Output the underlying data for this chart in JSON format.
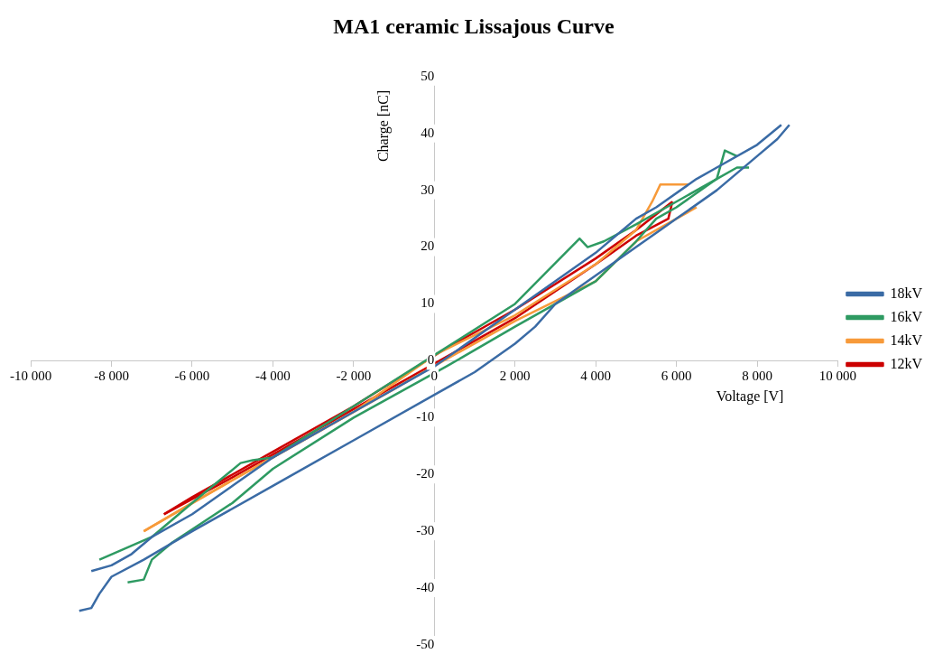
{
  "chart_data": {
    "type": "line",
    "title": "MA1 ceramic Lissajous Curve",
    "xlabel": "Voltage [V]",
    "ylabel": "Charge [nC]",
    "xlim": [
      -10000,
      10000
    ],
    "ylim": [
      -50,
      50
    ],
    "xticks": [
      {
        "value": -10000,
        "label": "-10 000"
      },
      {
        "value": -8000,
        "label": "-8 000"
      },
      {
        "value": -6000,
        "label": "-6 000"
      },
      {
        "value": -4000,
        "label": "-4 000"
      },
      {
        "value": -2000,
        "label": "-2 000"
      },
      0,
      {
        "value": 2000,
        "label": "2 000"
      },
      {
        "value": 4000,
        "label": "4 000"
      },
      {
        "value": 6000,
        "label": "6 000"
      },
      {
        "value": 8000,
        "label": "8 000"
      },
      {
        "value": 10000,
        "label": "10 000"
      }
    ],
    "yticks": [
      -50,
      -40,
      -30,
      -20,
      -10,
      0,
      10,
      20,
      30,
      40,
      50
    ],
    "grid": false,
    "legend": "right",
    "marker": "none",
    "line_style": "solid",
    "series": [
      {
        "name": "18kV",
        "color": "#3a6ba5",
        "x": [
          -8800,
          -8500,
          -8300,
          -8000,
          -7200,
          -6000,
          -4000,
          -2000,
          0,
          1000,
          2000,
          2500,
          3000,
          4000,
          5000,
          6000,
          7000,
          8000,
          8500,
          8800
        ],
        "values": [
          -44,
          -43.5,
          -41,
          -38,
          -35,
          -30,
          -22,
          -14,
          -6,
          -2,
          3,
          6,
          10,
          15,
          20,
          25,
          30,
          36,
          39,
          41.5
        ]
      },
      {
        "color": "#3a6ba5",
        "x": [
          -8500,
          -8000,
          -7500,
          -7000,
          -6000,
          -5000,
          -4000,
          -3000,
          -2000,
          0,
          2000,
          3000,
          4000,
          5000,
          5500,
          6500,
          7000,
          8000,
          8600
        ],
        "values": [
          -37,
          -36,
          -34,
          -31,
          -27,
          -22,
          -17,
          -13,
          -9,
          -1,
          9,
          14,
          19,
          25,
          27,
          32,
          34,
          38,
          41.5
        ]
      },
      {
        "name": "16kV",
        "color": "#2e9a62",
        "x": [
          -8300,
          -7000,
          -6000,
          -4800,
          -4500,
          -4000,
          -2000,
          0,
          2000,
          3600,
          3800,
          4200,
          5000,
          6000,
          7000,
          7200,
          7500
        ],
        "values": [
          -35,
          -31,
          -25,
          -18,
          -17.5,
          -17,
          -8,
          1,
          10,
          21.5,
          20,
          21,
          24,
          28,
          32,
          37,
          36
        ]
      },
      {
        "color": "#2e9a62",
        "x": [
          -7600,
          -7200,
          -7000,
          -6500,
          -5000,
          -4000,
          -2000,
          300,
          2000,
          4000,
          5000,
          5500,
          6000,
          7000,
          7500,
          7800
        ],
        "values": [
          -39,
          -38.5,
          -35,
          -32,
          -25,
          -19,
          -10,
          -1,
          6,
          14,
          21,
          25,
          27,
          32,
          34,
          34
        ]
      },
      {
        "name": "14kV",
        "color": "#f79a3a",
        "x": [
          -7200,
          -6000,
          -4000,
          -2000,
          0,
          2000,
          4000,
          5000,
          5400,
          5600,
          6300
        ],
        "values": [
          -30,
          -25,
          -17,
          -9,
          1,
          8,
          17,
          23,
          28,
          31,
          31
        ]
      },
      {
        "color": "#f79a3a",
        "x": [
          -7200,
          -5000,
          -3000,
          -1000,
          -400,
          2000,
          4000,
          5000,
          6000,
          6500
        ],
        "values": [
          -30,
          -21,
          -13,
          -5,
          -2.5,
          7,
          14,
          21,
          25,
          27
        ]
      },
      {
        "name": "12kV",
        "color": "#cc0000",
        "x": [
          -6700,
          -6000,
          -4000,
          -2000,
          300,
          2000,
          4000,
          5000,
          5900
        ],
        "values": [
          -27,
          -24,
          -16,
          -8,
          2.2,
          9,
          18,
          23,
          28
        ]
      },
      {
        "color": "#cc0000",
        "x": [
          -6700,
          -5000,
          -3000,
          -1000,
          0,
          2000,
          4000,
          5000,
          5800,
          5900
        ],
        "values": [
          -27,
          -20.5,
          -12.5,
          -4.5,
          -0.5,
          7.5,
          17,
          22,
          25,
          28
        ]
      }
    ]
  }
}
